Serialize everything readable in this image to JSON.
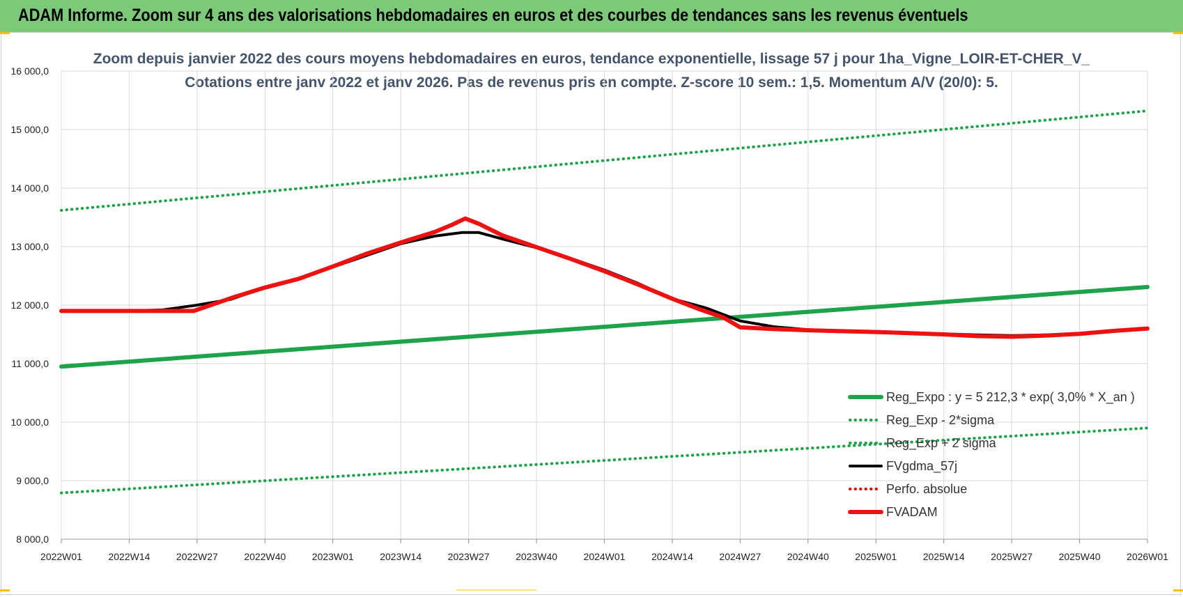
{
  "header": {
    "title": "ADAM Informe. Zoom sur 4 ans des valorisations hebdomadaires en euros et des courbes de tendances sans les revenus éventuels"
  },
  "chart_data": {
    "type": "line",
    "title": "Zoom depuis janvier 2022 des cours moyens hebdomadaires en euros, tendance exponentielle, lissage 57 j pour 1ha_Vigne_LOIR-ET-CHER_V_",
    "subtitle": "Cotations entre janv 2022 et janv 2026. Pas de revenus pris en compte. Z-score 10 sem.: 1,5. Momentum A/V (20/0): 5.",
    "xlabel": "",
    "ylabel": "",
    "ylim": [
      8000,
      16000
    ],
    "y_ticks": [
      8000,
      9000,
      10000,
      11000,
      12000,
      13000,
      14000,
      15000,
      16000
    ],
    "y_tick_labels": [
      "8 000,0",
      "9 000,0",
      "10 000,0",
      "11 000,0",
      "12 000,0",
      "13 000,0",
      "14 000,0",
      "15 000,0",
      "16 000,0"
    ],
    "x_tick_labels": [
      "2022W01",
      "2022W14",
      "2022W27",
      "2022W40",
      "2023W01",
      "2023W14",
      "2023W27",
      "2023W40",
      "2024W01",
      "2024W14",
      "2024W27",
      "2024W40",
      "2025W01",
      "2025W14",
      "2025W27",
      "2025W40",
      "2026W01"
    ],
    "grid": true,
    "legend_position": "bottom-right",
    "series": [
      {
        "name": "Reg_Expo : y = 5 212,3 * exp( 3,0% *  X_an )",
        "style": "solid-thick",
        "color": "#1fa34a",
        "points": [
          [
            0,
            10950
          ],
          [
            16,
            12310
          ]
        ]
      },
      {
        "name": "Reg_Exp - 2*sigma",
        "style": "dotted",
        "color": "#1fa34a",
        "points": [
          [
            0,
            8790
          ],
          [
            16,
            9900
          ]
        ]
      },
      {
        "name": "Reg_Exp + 2 sigma",
        "style": "dotted",
        "color": "#1fa34a",
        "points": [
          [
            0,
            13620
          ],
          [
            16,
            15320
          ]
        ]
      },
      {
        "name": "FVgdma_57j",
        "style": "solid",
        "color": "#000000",
        "points": [
          [
            0,
            11900
          ],
          [
            1,
            11900
          ],
          [
            1.5,
            11920
          ],
          [
            2,
            12000
          ],
          [
            2.5,
            12100
          ],
          [
            3,
            12300
          ],
          [
            3.5,
            12450
          ],
          [
            4,
            12650
          ],
          [
            4.5,
            12850
          ],
          [
            5,
            13050
          ],
          [
            5.5,
            13180
          ],
          [
            5.9,
            13240
          ],
          [
            6.15,
            13240
          ],
          [
            6.5,
            13130
          ],
          [
            7,
            12980
          ],
          [
            7.5,
            12800
          ],
          [
            8,
            12600
          ],
          [
            8.5,
            12370
          ],
          [
            9,
            12110
          ],
          [
            9.5,
            11950
          ],
          [
            10,
            11730
          ],
          [
            10.5,
            11630
          ],
          [
            11,
            11580
          ],
          [
            12,
            11540
          ],
          [
            13,
            11510
          ],
          [
            13.5,
            11490
          ],
          [
            14,
            11480
          ],
          [
            14.5,
            11490
          ],
          [
            15,
            11510
          ],
          [
            15.5,
            11550
          ],
          [
            16,
            11600
          ]
        ]
      },
      {
        "name": "Perfo. absolue",
        "style": "dotted",
        "color": "#e01010",
        "points": []
      },
      {
        "name": "FVADAM",
        "style": "solid-thick",
        "color": "#ee1111",
        "points": [
          [
            0,
            11900
          ],
          [
            1,
            11900
          ],
          [
            1.5,
            11900
          ],
          [
            1.95,
            11900
          ],
          [
            2.1,
            11960
          ],
          [
            2.5,
            12120
          ],
          [
            3,
            12300
          ],
          [
            3.5,
            12450
          ],
          [
            4,
            12660
          ],
          [
            4.5,
            12880
          ],
          [
            5,
            13070
          ],
          [
            5.5,
            13250
          ],
          [
            5.75,
            13370
          ],
          [
            5.95,
            13480
          ],
          [
            6.15,
            13390
          ],
          [
            6.5,
            13190
          ],
          [
            7,
            12990
          ],
          [
            7.5,
            12790
          ],
          [
            8,
            12580
          ],
          [
            8.5,
            12350
          ],
          [
            9,
            12110
          ],
          [
            9.4,
            11930
          ],
          [
            9.75,
            11790
          ],
          [
            10,
            11620
          ],
          [
            10.5,
            11590
          ],
          [
            11,
            11570
          ],
          [
            12,
            11540
          ],
          [
            13,
            11500
          ],
          [
            13.5,
            11470
          ],
          [
            14,
            11460
          ],
          [
            14.5,
            11480
          ],
          [
            15,
            11510
          ],
          [
            15.5,
            11560
          ],
          [
            16,
            11600
          ]
        ]
      }
    ]
  }
}
